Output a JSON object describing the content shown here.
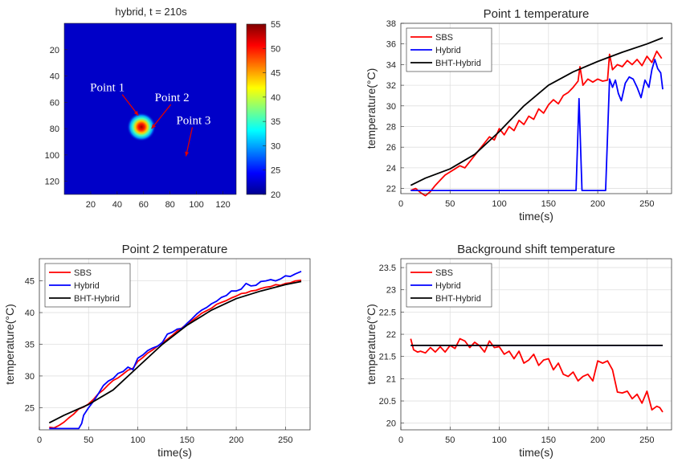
{
  "chart_data": [
    {
      "id": "heatmap",
      "type": "heatmap",
      "title": "hybrid, t = 210s",
      "xlim": [
        0,
        130
      ],
      "ylim": [
        0,
        130
      ],
      "xticks": [
        20,
        40,
        60,
        80,
        100,
        120
      ],
      "yticks": [
        20,
        40,
        60,
        80,
        100,
        120
      ],
      "background_value": 21,
      "hotspot": {
        "center": [
          57,
          78
        ],
        "peak": 55,
        "radius": 10
      },
      "colorbar": {
        "min": 20,
        "max": 55,
        "ticks": [
          20,
          25,
          30,
          35,
          40,
          45,
          50,
          55
        ]
      },
      "annotations": [
        {
          "label": "Point 1",
          "tip": [
            56,
            70
          ]
        },
        {
          "label": "Point 2",
          "tip": [
            66,
            80
          ]
        },
        {
          "label": "Point 3",
          "tip": [
            92,
            101
          ]
        }
      ],
      "colors": {
        "low": "#0000c8",
        "high": "#7f0000"
      }
    },
    {
      "id": "p1",
      "type": "line",
      "title": "Point 1 temperature",
      "xlabel": "time(s)",
      "ylabel": "temperature(°C)",
      "xlim": [
        0,
        275
      ],
      "ylim": [
        21.5,
        38
      ],
      "xticks": [
        0,
        50,
        100,
        150,
        200,
        250
      ],
      "yticks": [
        22,
        24,
        26,
        28,
        30,
        32,
        34,
        36,
        38
      ],
      "legend": "top-left",
      "series": [
        {
          "name": "SBS",
          "color": "#ff0000",
          "x": [
            10,
            15,
            20,
            25,
            30,
            35,
            40,
            45,
            50,
            55,
            60,
            65,
            70,
            75,
            80,
            85,
            90,
            95,
            100,
            105,
            110,
            115,
            120,
            125,
            130,
            135,
            140,
            145,
            150,
            155,
            160,
            165,
            170,
            175,
            180,
            182,
            185,
            190,
            195,
            200,
            205,
            210,
            212,
            215,
            220,
            225,
            230,
            235,
            240,
            245,
            250,
            255,
            260,
            265
          ],
          "y": [
            21.8,
            22,
            21.6,
            21.3,
            21.7,
            22.3,
            22.8,
            23.3,
            23.6,
            23.9,
            24.2,
            24.0,
            24.6,
            25.2,
            25.8,
            26.4,
            27.0,
            26.7,
            27.8,
            27.2,
            28.0,
            27.6,
            28.6,
            28.2,
            29.0,
            28.7,
            29.7,
            29.3,
            30.1,
            30.6,
            30.2,
            31.0,
            31.3,
            31.8,
            32.4,
            33.8,
            32.0,
            32.6,
            32.3,
            32.6,
            32.4,
            32.5,
            35.0,
            33.5,
            34.0,
            33.8,
            34.4,
            34.0,
            34.5,
            33.9,
            34.8,
            34.2,
            35.3,
            34.6
          ]
        },
        {
          "name": "Hybrid",
          "color": "#0000ff",
          "x": [
            10,
            100,
            178,
            181,
            184,
            188,
            200,
            208,
            212,
            215,
            218,
            221,
            224,
            228,
            232,
            236,
            240,
            244,
            248,
            252,
            255,
            258,
            261,
            264,
            266
          ],
          "y": [
            21.8,
            21.8,
            21.8,
            30.7,
            21.8,
            21.8,
            21.8,
            21.8,
            32.6,
            31.8,
            32.5,
            31.2,
            30.5,
            32.2,
            32.8,
            32.6,
            31.8,
            30.8,
            32.5,
            31.8,
            33.5,
            34.5,
            33.6,
            33.2,
            31.6
          ]
        },
        {
          "name": "BHT-Hybrid",
          "color": "#000000",
          "x": [
            10,
            25,
            50,
            75,
            100,
            125,
            150,
            175,
            200,
            225,
            250,
            266
          ],
          "y": [
            22.3,
            23.0,
            23.9,
            25.3,
            27.5,
            30.0,
            32.0,
            33.3,
            34.3,
            35.2,
            36.0,
            36.6
          ]
        }
      ]
    },
    {
      "id": "p2",
      "type": "line",
      "title": "Point 2 temperature",
      "xlabel": "time(s)",
      "ylabel": "temperature(°C)",
      "xlim": [
        0,
        275
      ],
      "ylim": [
        21.5,
        48.5
      ],
      "xticks": [
        0,
        50,
        100,
        150,
        200,
        250
      ],
      "yticks": [
        25,
        30,
        35,
        40,
        45
      ],
      "legend": "top-left",
      "series": [
        {
          "name": "SBS",
          "color": "#ff0000",
          "x": [
            10,
            15,
            20,
            25,
            30,
            35,
            40,
            45,
            50,
            55,
            60,
            65,
            70,
            75,
            80,
            85,
            90,
            95,
            100,
            105,
            110,
            115,
            120,
            125,
            130,
            135,
            140,
            145,
            150,
            155,
            160,
            165,
            170,
            175,
            180,
            185,
            190,
            195,
            200,
            205,
            210,
            215,
            220,
            225,
            230,
            235,
            240,
            245,
            250,
            255,
            260,
            266
          ],
          "y": [
            21.9,
            21.8,
            22.2,
            22.7,
            23.4,
            24.0,
            24.8,
            25.1,
            25.6,
            26.3,
            27.2,
            27.8,
            28.6,
            29.3,
            29.7,
            30.3,
            30.9,
            31.2,
            32.3,
            32.9,
            33.6,
            34.1,
            34.7,
            35.2,
            35.8,
            36.4,
            37.1,
            37.6,
            38.2,
            38.7,
            39.3,
            39.9,
            40.3,
            40.7,
            41.3,
            41.6,
            41.9,
            42.3,
            42.6,
            43.0,
            43.1,
            43.4,
            43.5,
            43.8,
            44.0,
            44.1,
            44.4,
            44.3,
            44.6,
            44.7,
            45.0,
            45.1
          ]
        },
        {
          "name": "Hybrid",
          "color": "#0000ff",
          "x": [
            10,
            20,
            30,
            40,
            43,
            45,
            50,
            55,
            60,
            65,
            70,
            75,
            80,
            85,
            90,
            95,
            100,
            105,
            110,
            115,
            120,
            125,
            130,
            135,
            140,
            145,
            150,
            155,
            160,
            165,
            170,
            175,
            180,
            185,
            190,
            195,
            200,
            205,
            210,
            215,
            220,
            225,
            230,
            235,
            240,
            245,
            250,
            255,
            260,
            266
          ],
          "y": [
            21.7,
            21.7,
            21.7,
            21.7,
            22.5,
            23.8,
            25.0,
            26.0,
            27.2,
            28.5,
            29.2,
            29.6,
            30.4,
            30.7,
            31.4,
            31.0,
            32.8,
            33.3,
            34.0,
            34.4,
            34.7,
            35.3,
            36.6,
            36.9,
            37.4,
            37.5,
            38.3,
            39.0,
            39.8,
            40.4,
            40.8,
            41.4,
            41.8,
            42.4,
            42.7,
            43.4,
            43.4,
            43.7,
            44.6,
            44.2,
            44.3,
            44.9,
            45.0,
            45.2,
            45.0,
            45.3,
            45.8,
            45.7,
            46.1,
            46.5
          ]
        },
        {
          "name": "BHT-Hybrid",
          "color": "#000000",
          "x": [
            10,
            25,
            50,
            75,
            100,
            125,
            150,
            175,
            200,
            225,
            250,
            266
          ],
          "y": [
            22.6,
            23.8,
            25.5,
            27.8,
            31.4,
            35.0,
            38.0,
            40.4,
            42.2,
            43.4,
            44.4,
            44.9
          ]
        }
      ]
    },
    {
      "id": "bg",
      "type": "line",
      "title": "Background shift temperature",
      "xlabel": "time(s)",
      "ylabel": "temperature(°C)",
      "xlim": [
        0,
        275
      ],
      "ylim": [
        19.85,
        23.7
      ],
      "xticks": [
        0,
        50,
        100,
        150,
        200,
        250
      ],
      "yticks": [
        20,
        20.5,
        21,
        21.5,
        22,
        22.5,
        23,
        23.5
      ],
      "legend": "top-left",
      "series": [
        {
          "name": "SBS",
          "color": "#ff0000",
          "x": [
            10,
            13,
            17,
            20,
            25,
            30,
            35,
            40,
            45,
            50,
            55,
            60,
            65,
            70,
            75,
            80,
            85,
            90,
            95,
            100,
            105,
            110,
            115,
            120,
            125,
            130,
            135,
            140,
            145,
            150,
            155,
            160,
            165,
            170,
            175,
            180,
            185,
            190,
            195,
            200,
            205,
            210,
            215,
            220,
            225,
            230,
            235,
            240,
            245,
            250,
            255,
            260,
            263,
            266
          ],
          "y": [
            21.9,
            21.65,
            21.6,
            21.62,
            21.58,
            21.7,
            21.6,
            21.72,
            21.6,
            21.75,
            21.68,
            21.9,
            21.85,
            21.7,
            21.82,
            21.74,
            21.6,
            21.85,
            21.7,
            21.72,
            21.55,
            21.62,
            21.45,
            21.62,
            21.35,
            21.42,
            21.55,
            21.3,
            21.42,
            21.45,
            21.2,
            21.35,
            21.1,
            21.05,
            21.15,
            20.95,
            21.05,
            21.1,
            20.95,
            21.4,
            21.35,
            21.4,
            21.2,
            20.7,
            20.68,
            20.72,
            20.55,
            20.65,
            20.45,
            20.72,
            20.3,
            20.38,
            20.35,
            20.25
          ]
        },
        {
          "name": "Hybrid",
          "color": "#0000ff",
          "x": [
            10,
            266
          ],
          "y": [
            21.75,
            21.75
          ]
        },
        {
          "name": "BHT-Hybrid",
          "color": "#000000",
          "x": [
            10,
            266
          ],
          "y": [
            21.75,
            21.75
          ]
        }
      ]
    }
  ]
}
